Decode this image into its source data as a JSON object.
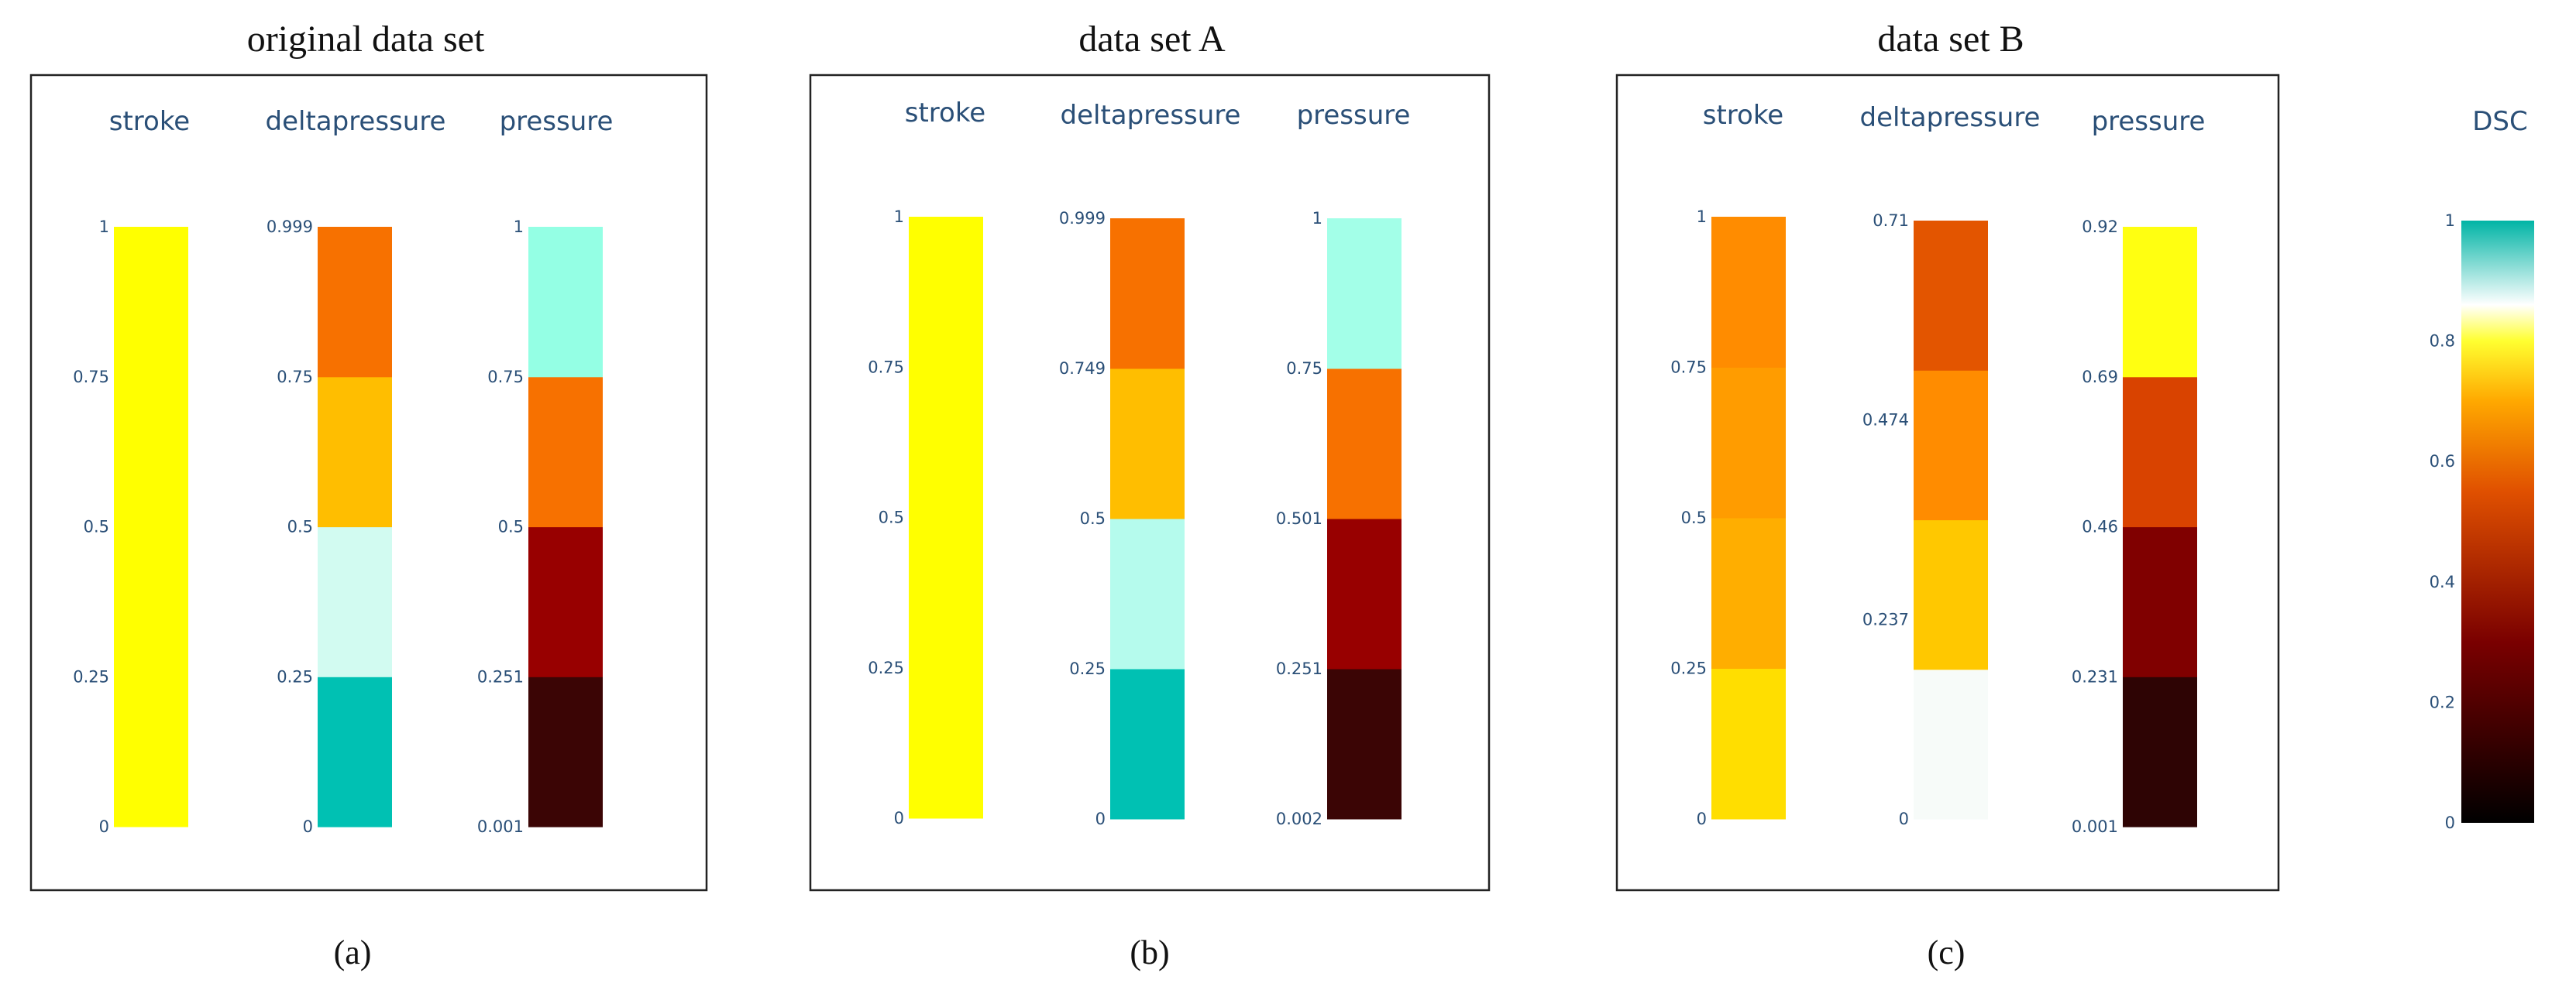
{
  "chart_data": [
    {
      "type": "parallel-categories-colorbars",
      "panel_title": "original data set",
      "caption": "(a)",
      "columns": [
        {
          "label": "stroke",
          "ticks": [
            "1",
            "0.75",
            "0.5",
            "0.25",
            "0"
          ],
          "segments": [
            {
              "from": 0,
              "to": 1,
              "color": "#ffff00"
            }
          ]
        },
        {
          "label": "deltapressure",
          "ticks": [
            "0.999",
            "0.75",
            "0.5",
            "0.25",
            "0"
          ],
          "segments": [
            {
              "from": 0,
              "to": 0.25,
              "color": "#00c1b3"
            },
            {
              "from": 0.25,
              "to": 0.5,
              "color": "#d2fbf1"
            },
            {
              "from": 0.5,
              "to": 0.75,
              "color": "#ffbe00"
            },
            {
              "from": 0.75,
              "to": 1,
              "color": "#f77100"
            }
          ]
        },
        {
          "label": "pressure",
          "ticks": [
            "1",
            "0.75",
            "0.5",
            "0.251",
            "0.001"
          ],
          "segments": [
            {
              "from": 0,
              "to": 0.25,
              "color": "#3b0505"
            },
            {
              "from": 0.25,
              "to": 0.5,
              "color": "#980000"
            },
            {
              "from": 0.5,
              "to": 0.75,
              "color": "#f77100"
            },
            {
              "from": 0.75,
              "to": 1,
              "color": "#94ffe4"
            }
          ]
        }
      ]
    },
    {
      "type": "parallel-categories-colorbars",
      "panel_title": "data set A",
      "caption": "(b)",
      "columns": [
        {
          "label": "stroke",
          "ticks": [
            "1",
            "0.75",
            "0.5",
            "0.25",
            "0"
          ],
          "segments": [
            {
              "from": 0,
              "to": 1,
              "color": "#ffff00"
            }
          ]
        },
        {
          "label": "deltapressure",
          "ticks": [
            "0.999",
            "0.749",
            "0.5",
            "0.25",
            "0"
          ],
          "segments": [
            {
              "from": 0,
              "to": 0.25,
              "color": "#00c1b3"
            },
            {
              "from": 0.25,
              "to": 0.5,
              "color": "#b5fbed"
            },
            {
              "from": 0.5,
              "to": 0.75,
              "color": "#ffbe00"
            },
            {
              "from": 0.75,
              "to": 1,
              "color": "#f77100"
            }
          ]
        },
        {
          "label": "pressure",
          "ticks": [
            "1",
            "0.75",
            "0.501",
            "0.251",
            "0.002"
          ],
          "segments": [
            {
              "from": 0,
              "to": 0.25,
              "color": "#3b0505"
            },
            {
              "from": 0.25,
              "to": 0.5,
              "color": "#980000"
            },
            {
              "from": 0.5,
              "to": 0.75,
              "color": "#f77100"
            },
            {
              "from": 0.75,
              "to": 1,
              "color": "#a3ffe8"
            }
          ]
        }
      ]
    },
    {
      "type": "parallel-categories-colorbars",
      "panel_title": "data set B",
      "caption": "(c)",
      "columns": [
        {
          "label": "stroke",
          "ticks": [
            "1",
            "0.75",
            "0.5",
            "0.25",
            "0"
          ],
          "segments": [
            {
              "from": 0,
              "to": 0.25,
              "color": "#ffde00"
            },
            {
              "from": 0.25,
              "to": 0.5,
              "color": "#ffae00"
            },
            {
              "from": 0.5,
              "to": 0.75,
              "color": "#ff9c00"
            },
            {
              "from": 0.75,
              "to": 1,
              "color": "#ff8c00"
            }
          ]
        },
        {
          "label": "deltapressure",
          "ticks": [
            "0.71",
            "0.474",
            "0.237",
            "0"
          ],
          "segments": [
            {
              "from": 0,
              "to": 0.25,
              "color": "#f7fbf9"
            },
            {
              "from": 0.25,
              "to": 0.5,
              "color": "#ffc800"
            },
            {
              "from": 0.5,
              "to": 0.75,
              "color": "#ff8c00"
            },
            {
              "from": 0.75,
              "to": 1,
              "color": "#e35500"
            }
          ]
        },
        {
          "label": "pressure",
          "ticks": [
            "0.92",
            "0.69",
            "0.46",
            "0.231",
            "0.001"
          ],
          "segments": [
            {
              "from": 0,
              "to": 0.25,
              "color": "#2e0404"
            },
            {
              "from": 0.25,
              "to": 0.5,
              "color": "#800000"
            },
            {
              "from": 0.5,
              "to": 0.75,
              "color": "#d94300"
            },
            {
              "from": 0.75,
              "to": 1,
              "color": "#ffff11"
            }
          ]
        }
      ]
    },
    {
      "type": "colorbar",
      "title": "DSC",
      "range": [
        0,
        1
      ],
      "ticks": [
        "1",
        "0.8",
        "0.6",
        "0.4",
        "0.2",
        "0"
      ],
      "gradient": [
        {
          "offset": 0,
          "color": "#000000"
        },
        {
          "offset": 0.3,
          "color": "#7a0000"
        },
        {
          "offset": 0.55,
          "color": "#e05000"
        },
        {
          "offset": 0.7,
          "color": "#ffa800"
        },
        {
          "offset": 0.8,
          "color": "#ffff30"
        },
        {
          "offset": 0.86,
          "color": "#ffffff"
        },
        {
          "offset": 1,
          "color": "#00b4a5"
        }
      ]
    }
  ]
}
